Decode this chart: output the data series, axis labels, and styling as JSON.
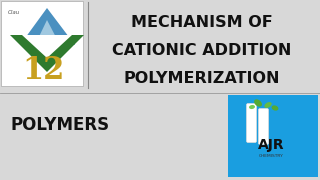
{
  "bg_color": "#d8d8d8",
  "title_lines": [
    "MECHANISM OF",
    "CATIONIC ADDITION",
    "POLYMERIZATION"
  ],
  "title_color": "#111111",
  "title_fontsize": 11.5,
  "subtitle": "POLYMERS",
  "subtitle_color": "#111111",
  "subtitle_fontsize": 12,
  "class12_num": "12",
  "class12_num_color": "#c8a020",
  "class_text": "Clau",
  "logo_bg": "#ffffff",
  "logo_box_color": "#1a9ee0",
  "ajr_text": "AJR",
  "chemistry_text": "CHEMISTRY",
  "triangle_top_color": "#4a90c0",
  "triangle_top_peak": "#a0c8e0",
  "triangle_bottom_color": "#2e7a2e",
  "divider_color": "#888888",
  "separator_color": "#999999"
}
